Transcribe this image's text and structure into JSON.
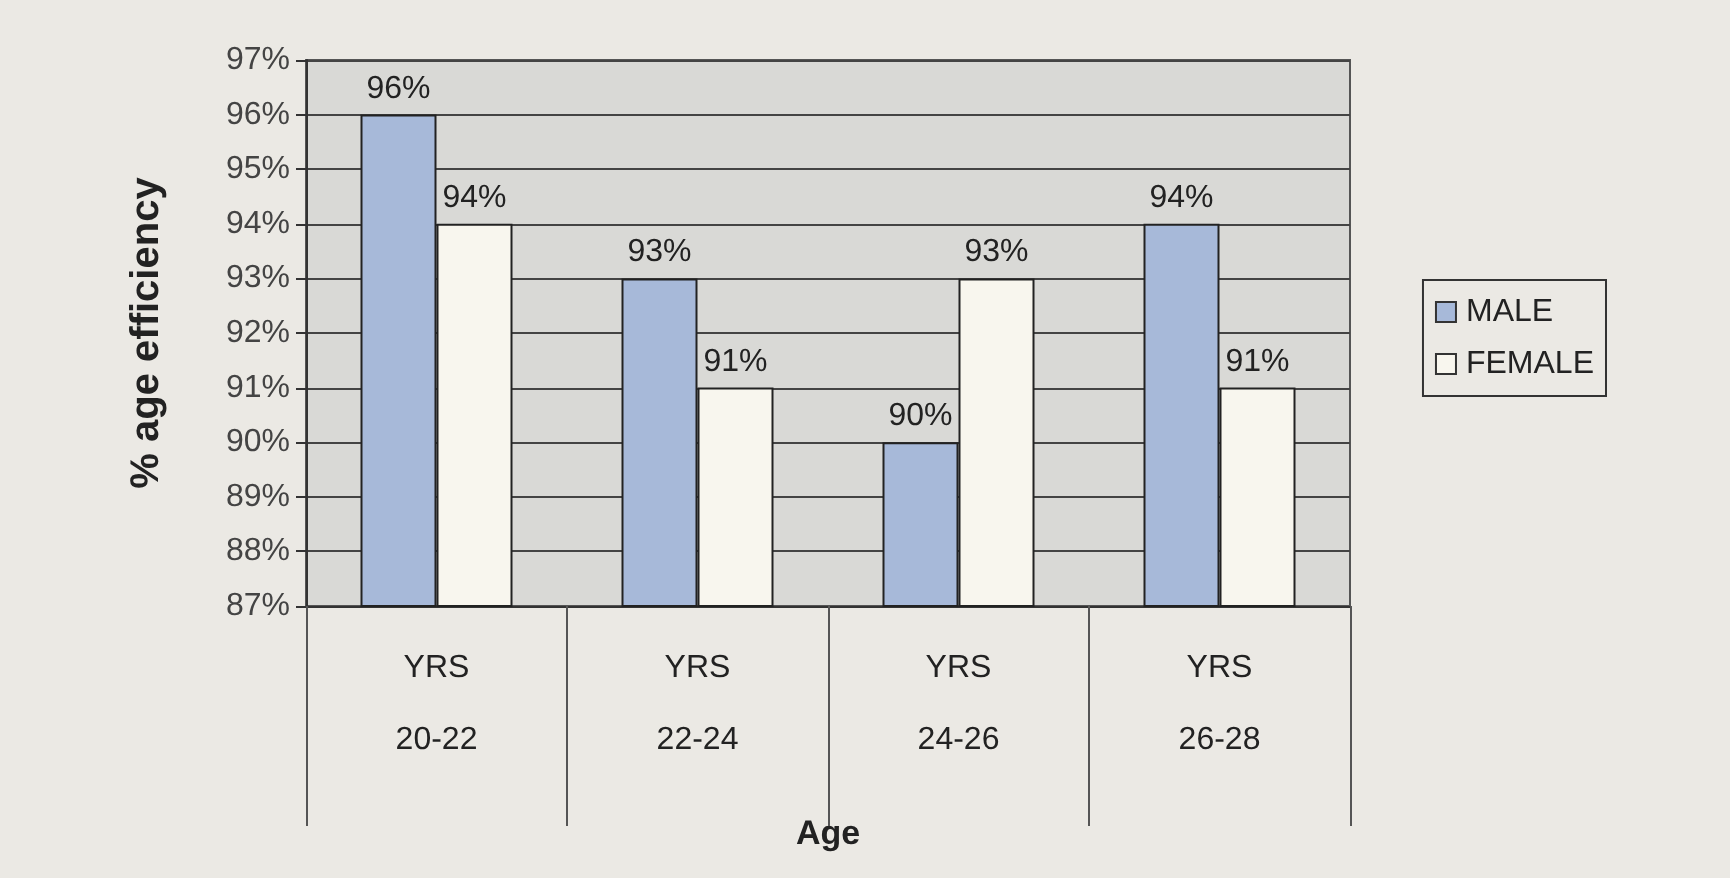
{
  "chart_data": {
    "type": "bar",
    "xlabel": "Age",
    "ylabel": "% age efficiency",
    "categories": [
      "YRS\n\n20-22",
      "YRS\n\n22-24",
      "YRS\n\n24-26",
      "YRS\n\n26-28"
    ],
    "series": [
      {
        "name": "MALE",
        "color": "#a7b9d9",
        "values": [
          96,
          93,
          90,
          94
        ]
      },
      {
        "name": "FEMALE",
        "color": "#f8f6ee",
        "values": [
          94,
          91,
          93,
          91
        ]
      }
    ],
    "ylim": [
      87,
      97
    ],
    "yticks": [
      {
        "value": 87,
        "label": "87%"
      },
      {
        "value": 88,
        "label": "88%"
      },
      {
        "value": 89,
        "label": "89%"
      },
      {
        "value": 90,
        "label": "90%"
      },
      {
        "value": 91,
        "label": "91%"
      },
      {
        "value": 92,
        "label": "92%"
      },
      {
        "value": 93,
        "label": "93%"
      },
      {
        "value": 94,
        "label": "94%"
      },
      {
        "value": 95,
        "label": "95%"
      },
      {
        "value": 96,
        "label": "96%"
      },
      {
        "value": 97,
        "label": "97%"
      }
    ],
    "value_labels": [
      [
        "96%",
        "93%",
        "90%",
        "94%"
      ],
      [
        "94%",
        "91%",
        "93%",
        "91%"
      ]
    ],
    "grid": "y",
    "legend": "right"
  }
}
